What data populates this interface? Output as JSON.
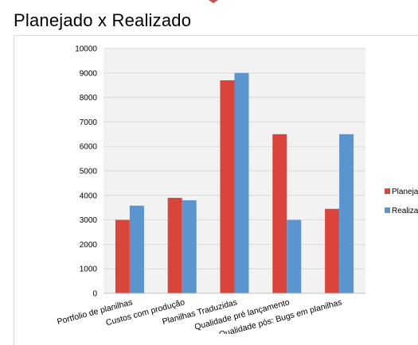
{
  "page": {
    "title": "Planejado x Realizado",
    "accent_color": "#c0504d"
  },
  "chart_data": {
    "type": "bar",
    "title": "",
    "xlabel": "",
    "ylabel": "",
    "ylim": [
      0,
      10000
    ],
    "yticks": [
      0,
      1000,
      2000,
      3000,
      4000,
      5000,
      6000,
      7000,
      8000,
      9000,
      10000
    ],
    "grid": true,
    "legend_position": "right",
    "categories": [
      "Portfolio de planilhas",
      "Custos com produção",
      "Planilhas Traduzidas",
      "Qualidade pré lançamento",
      "Qualidade pós: Bugs em planilhas"
    ],
    "series": [
      {
        "name": "Planejado",
        "color": "#d9443b",
        "values": [
          3000,
          3900,
          8700,
          6500,
          3450
        ]
      },
      {
        "name": "Realizado",
        "color": "#5b95cf",
        "values": [
          3580,
          3800,
          9000,
          3000,
          6500
        ]
      }
    ],
    "legend_labels_visible": [
      "Planeja",
      "Realiza"
    ]
  }
}
